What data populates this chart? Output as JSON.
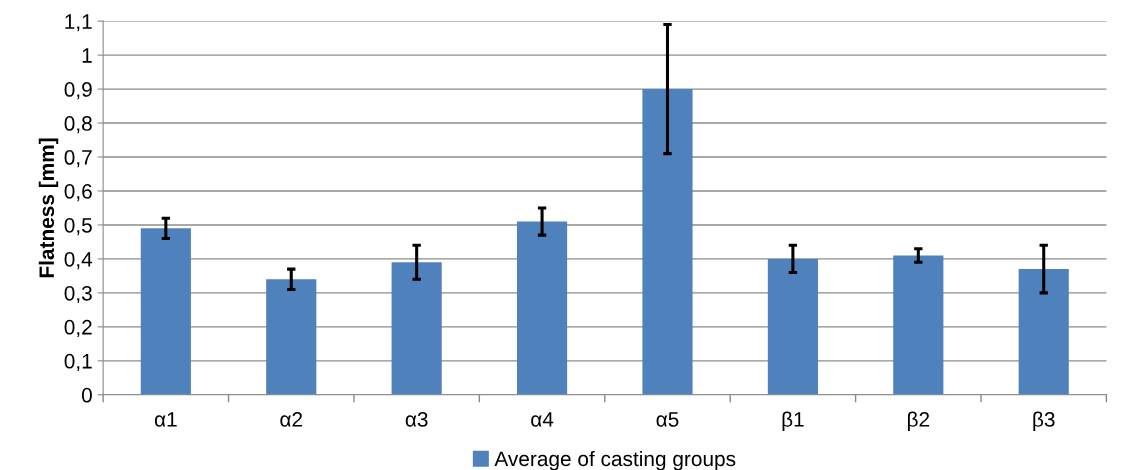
{
  "chart_data": {
    "type": "bar",
    "ylabel": "Flatness [mm]",
    "categories": [
      "α1",
      "α2",
      "α3",
      "α4",
      "α5",
      "β1",
      "β2",
      "β3"
    ],
    "series": [
      {
        "name": "Average of casting groups",
        "color": "#4f81bd",
        "values": [
          0.49,
          0.34,
          0.39,
          0.51,
          0.9,
          0.4,
          0.41,
          0.37
        ],
        "errors": [
          0.03,
          0.03,
          0.05,
          0.04,
          0.19,
          0.04,
          0.02,
          0.07
        ]
      }
    ],
    "ylim": [
      0,
      1.1
    ],
    "yticks": [
      0,
      {
        "value": 0.1,
        "label": "0,1"
      },
      {
        "value": 0.2,
        "label": "0,2"
      },
      {
        "value": 0.3,
        "label": "0,3"
      },
      {
        "value": 0.4,
        "label": "0,4"
      },
      {
        "value": 0.5,
        "label": "0,5"
      },
      {
        "value": 0.6,
        "label": "0,6"
      },
      {
        "value": 0.7,
        "label": "0,7"
      },
      {
        "value": 0.8,
        "label": "0,8"
      },
      {
        "value": 0.9,
        "label": "0,9"
      },
      1,
      {
        "value": 1.1,
        "label": "1,1"
      }
    ],
    "grid": "y",
    "legend": "bottom"
  }
}
